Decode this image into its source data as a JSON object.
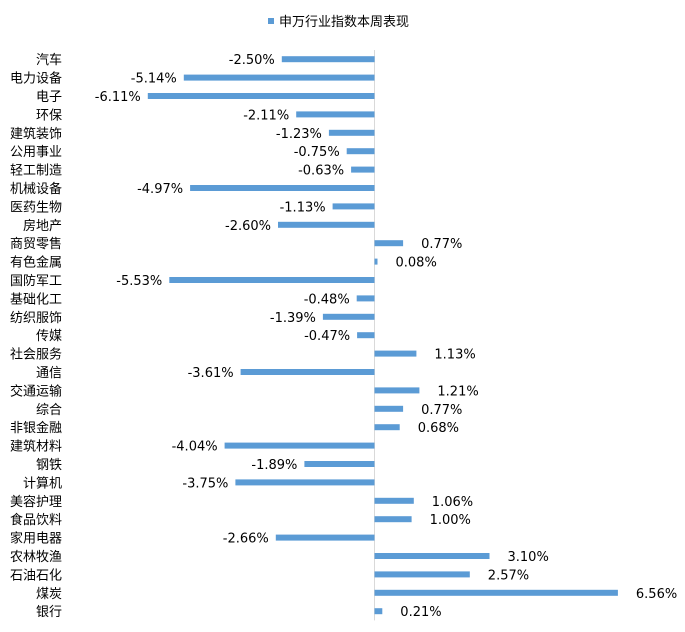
{
  "chart_data": {
    "type": "bar",
    "orientation": "horizontal",
    "title": "",
    "xlabel": "",
    "ylabel": "",
    "xlim": [
      -7.0,
      7.0
    ],
    "grid": false,
    "legend_position": "top",
    "color": "#5B9BD5",
    "series": [
      {
        "name": "申万行业指数本周表现",
        "categories": [
          "汽车",
          "电力设备",
          "电子",
          "环保",
          "建筑装饰",
          "公用事业",
          "轻工制造",
          "机械设备",
          "医药生物",
          "房地产",
          "商贸零售",
          "有色金属",
          "国防军工",
          "基础化工",
          "纺织服饰",
          "传媒",
          "社会服务",
          "通信",
          "交通运输",
          "综合",
          "非银金融",
          "建筑材料",
          "钢铁",
          "计算机",
          "美容护理",
          "食品饮料",
          "家用电器",
          "农林牧渔",
          "石油石化",
          "煤炭",
          "银行"
        ],
        "values": [
          -2.5,
          -5.14,
          -6.11,
          -2.11,
          -1.23,
          -0.75,
          -0.63,
          -4.97,
          -1.13,
          -2.6,
          0.77,
          0.08,
          -5.53,
          -0.48,
          -1.39,
          -0.47,
          1.13,
          -3.61,
          1.21,
          0.77,
          0.68,
          -4.04,
          -1.89,
          -3.75,
          1.06,
          1.0,
          -2.66,
          3.1,
          2.57,
          6.56,
          0.21
        ],
        "labels": [
          "-2.50%",
          "-5.14%",
          "-6.11%",
          "-2.11%",
          "-1.23%",
          "-0.75%",
          "-0.63%",
          "-4.97%",
          "-1.13%",
          "-2.60%",
          "0.77%",
          "0.08%",
          "-5.53%",
          "-0.48%",
          "-1.39%",
          "-0.47%",
          "1.13%",
          "-3.61%",
          "1.21%",
          "0.77%",
          "0.68%",
          "-4.04%",
          "-1.89%",
          "-3.75%",
          "1.06%",
          "1.00%",
          "-2.66%",
          "3.10%",
          "2.57%",
          "6.56%",
          "0.21%"
        ]
      }
    ]
  }
}
